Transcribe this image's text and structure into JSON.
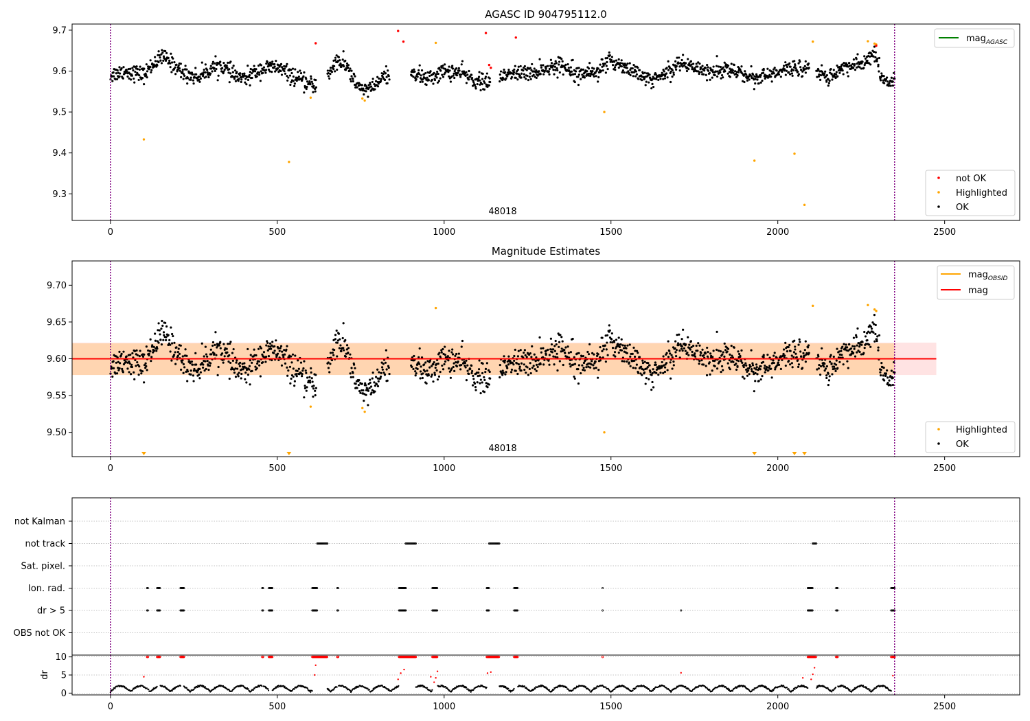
{
  "chart_data": [
    {
      "panel": "agasc",
      "type": "scatter",
      "title": "AGASC ID 904795112.0",
      "annotation": "48018",
      "xlim": [
        -115,
        2725
      ],
      "ylim": [
        9.235,
        9.715
      ],
      "xticks": [
        0,
        500,
        1000,
        1500,
        2000,
        2500
      ],
      "yticks": [
        9.3,
        9.4,
        9.5,
        9.6,
        9.7
      ],
      "ytick_labels": [
        "9.3",
        "9.4",
        "9.5",
        "9.6",
        "9.7"
      ],
      "vlines": [
        0,
        2350
      ],
      "legend_lines": [
        {
          "label": "mag",
          "sub": "AGASC",
          "color": "#008000"
        }
      ],
      "legend_points": [
        {
          "label": "not OK",
          "color": "#ff0000"
        },
        {
          "label": "Highlighted",
          "color": "#ffa500"
        },
        {
          "label": "OK",
          "color": "#000000"
        }
      ],
      "series": [
        {
          "name": "not OK",
          "color": "#ff0000",
          "x": [
            615,
            862,
            878,
            1125,
            1135,
            1140,
            1215,
            2295
          ],
          "y": [
            9.668,
            9.698,
            9.672,
            9.693,
            9.615,
            9.608,
            9.682,
            9.662
          ]
        },
        {
          "name": "Highlighted",
          "color": "#ffa500",
          "x": [
            100,
            535,
            600,
            755,
            762,
            975,
            1480,
            1930,
            2050,
            2080,
            2105,
            2270,
            2290,
            2295
          ],
          "y": [
            9.433,
            9.378,
            9.535,
            9.533,
            9.528,
            9.669,
            9.5,
            9.381,
            9.398,
            9.273,
            9.672,
            9.673,
            9.667,
            9.665
          ]
        },
        {
          "name": "OK",
          "color": "#000000",
          "trend": [
            [
              0,
              9.59
            ],
            [
              40,
              9.6
            ],
            [
              80,
              9.595
            ],
            [
              100,
              9.59
            ],
            [
              130,
              9.62
            ],
            [
              160,
              9.635
            ],
            [
              190,
              9.615
            ],
            [
              220,
              9.595
            ],
            [
              260,
              9.585
            ],
            [
              300,
              9.605
            ],
            [
              330,
              9.615
            ],
            [
              370,
              9.59
            ],
            [
              400,
              9.58
            ],
            [
              450,
              9.605
            ],
            [
              500,
              9.61
            ],
            [
              550,
              9.585
            ],
            [
              600,
              9.565
            ],
            [
              640,
              9.575
            ],
            [
              680,
              9.625
            ],
            [
              710,
              9.61
            ],
            [
              740,
              9.56
            ],
            [
              780,
              9.555
            ],
            [
              820,
              9.585
            ],
            [
              860,
              9.6
            ],
            [
              900,
              9.6
            ],
            [
              950,
              9.58
            ],
            [
              1000,
              9.6
            ],
            [
              1050,
              9.595
            ],
            [
              1100,
              9.575
            ],
            [
              1150,
              9.57
            ],
            [
              1200,
              9.595
            ],
            [
              1260,
              9.595
            ],
            [
              1300,
              9.605
            ],
            [
              1350,
              9.615
            ],
            [
              1400,
              9.6
            ],
            [
              1450,
              9.595
            ],
            [
              1500,
              9.625
            ],
            [
              1550,
              9.61
            ],
            [
              1600,
              9.58
            ],
            [
              1650,
              9.585
            ],
            [
              1700,
              9.62
            ],
            [
              1750,
              9.61
            ],
            [
              1800,
              9.6
            ],
            [
              1850,
              9.605
            ],
            [
              1900,
              9.59
            ],
            [
              1950,
              9.585
            ],
            [
              2000,
              9.595
            ],
            [
              2050,
              9.61
            ],
            [
              2100,
              9.605
            ],
            [
              2150,
              9.585
            ],
            [
              2200,
              9.61
            ],
            [
              2250,
              9.615
            ],
            [
              2290,
              9.645
            ],
            [
              2310,
              9.58
            ],
            [
              2350,
              9.57
            ]
          ],
          "gaps": [
            [
              618,
              650
            ],
            [
              836,
              900
            ],
            [
              1138,
              1165
            ],
            [
              2095,
              2115
            ]
          ],
          "spread": 0.018,
          "count": 1700
        }
      ]
    },
    {
      "panel": "estimates",
      "type": "scatter",
      "title": "Magnitude Estimates",
      "annotation": "48018",
      "xlim": [
        -115,
        2725
      ],
      "ylim": [
        9.467,
        9.733
      ],
      "xticks": [
        0,
        500,
        1000,
        1500,
        2000,
        2500
      ],
      "yticks": [
        9.5,
        9.55,
        9.6,
        9.65,
        9.7
      ],
      "ytick_labels": [
        "9.50",
        "9.55",
        "9.60",
        "9.65",
        "9.70"
      ],
      "vlines": [
        0,
        2350
      ],
      "mag": 9.6,
      "band_mag": [
        9.578,
        9.622
      ],
      "band_obsid": [
        9.578,
        9.621
      ],
      "band_obsid_x": [
        -115,
        2350
      ],
      "legend_lines": [
        {
          "label": "mag",
          "sub": "OBSID",
          "color": "#ffa500"
        },
        {
          "label": "mag",
          "sub": "",
          "color": "#ff0000"
        }
      ],
      "legend_points": [
        {
          "label": "Highlighted",
          "color": "#ffa500"
        },
        {
          "label": "OK",
          "color": "#000000"
        }
      ],
      "offscale_markers_x": [
        100,
        535,
        1930,
        2050,
        2080
      ],
      "series": [
        {
          "name": "Highlighted",
          "color": "#ffa500",
          "x": [
            600,
            755,
            762,
            975,
            1480,
            2105,
            2270,
            2290,
            2295
          ],
          "y": [
            9.535,
            9.533,
            9.528,
            9.669,
            9.5,
            9.672,
            9.673,
            9.667,
            9.665
          ]
        }
      ]
    },
    {
      "panel": "flags",
      "type": "scatter",
      "xlim": [
        -115,
        2725
      ],
      "xticks": [
        0,
        500,
        1000,
        1500,
        2000,
        2500
      ],
      "vlines": [
        0,
        2350
      ],
      "categories": [
        "not Kalman",
        "not track",
        "Sat. pixel.",
        "Ion. rad.",
        "dr > 5",
        "OBS not OK"
      ],
      "flag_ranges": {
        "not track": [
          [
            620,
            650
          ],
          [
            885,
            915
          ],
          [
            1135,
            1165
          ],
          [
            2105,
            2115
          ]
        ],
        "Ion. rad.": [
          [
            110,
            112
          ],
          [
            140,
            148
          ],
          [
            210,
            220
          ],
          [
            455,
            458
          ],
          [
            475,
            485
          ],
          [
            605,
            620
          ],
          [
            680,
            683
          ],
          [
            865,
            885
          ],
          [
            965,
            980
          ],
          [
            1128,
            1135
          ],
          [
            1210,
            1220
          ],
          [
            1475,
            1476
          ],
          [
            2090,
            2105
          ],
          [
            2175,
            2180
          ],
          [
            2340,
            2350
          ]
        ],
        "dr > 5": [
          [
            110,
            112
          ],
          [
            140,
            148
          ],
          [
            210,
            220
          ],
          [
            455,
            458
          ],
          [
            475,
            485
          ],
          [
            605,
            620
          ],
          [
            680,
            683
          ],
          [
            865,
            885
          ],
          [
            965,
            980
          ],
          [
            1128,
            1135
          ],
          [
            1210,
            1220
          ],
          [
            1475,
            1476
          ],
          [
            1710,
            1711
          ],
          [
            2090,
            2105
          ],
          [
            2175,
            2180
          ],
          [
            2340,
            2350
          ]
        ]
      }
    },
    {
      "panel": "dr",
      "type": "scatter",
      "ylabel": "dr",
      "xlim": [
        -115,
        2725
      ],
      "ylim": [
        -0.5,
        10.5
      ],
      "xticks": [
        0,
        500,
        1000,
        1500,
        2000,
        2500
      ],
      "yticks": [
        0,
        5,
        10
      ],
      "ytick_labels": [
        "0",
        "5",
        "10"
      ],
      "vlines": [
        0,
        2350
      ],
      "high_ranges": [
        [
          110,
          112
        ],
        [
          140,
          148
        ],
        [
          210,
          220
        ],
        [
          455,
          458
        ],
        [
          475,
          485
        ],
        [
          605,
          650
        ],
        [
          680,
          683
        ],
        [
          865,
          915
        ],
        [
          965,
          980
        ],
        [
          1128,
          1165
        ],
        [
          1210,
          1220
        ],
        [
          1475,
          1476
        ],
        [
          2090,
          2115
        ],
        [
          2175,
          2180
        ],
        [
          2340,
          2350
        ]
      ],
      "mid_points": {
        "x": [
          100,
          612,
          615,
          862,
          870,
          880,
          960,
          970,
          975,
          980,
          1130,
          1140,
          1710,
          2075,
          2100,
          2105,
          2110,
          2345
        ],
        "y": [
          4.5,
          5.0,
          7.7,
          3.8,
          5.5,
          6.5,
          4.5,
          3.0,
          4.2,
          6.0,
          5.5,
          5.8,
          5.6,
          4.2,
          3.8,
          5.2,
          7.0,
          4.8
        ]
      }
    }
  ]
}
